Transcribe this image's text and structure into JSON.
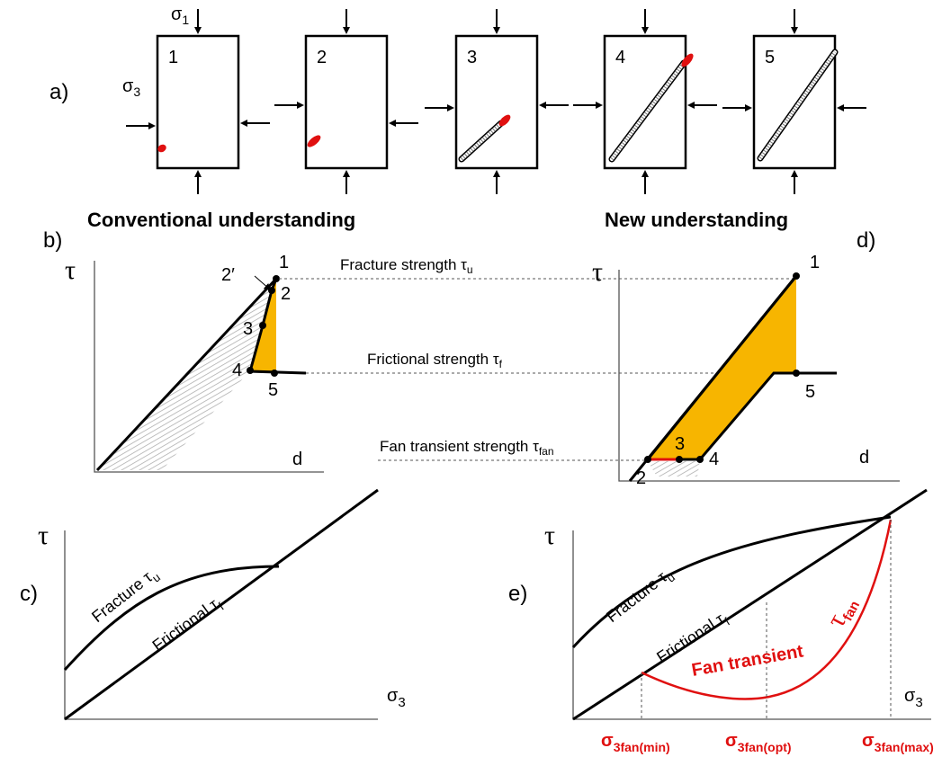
{
  "panel_a": {
    "label": "a)",
    "sigma_1": {
      "symbol": "σ",
      "subscript": "1"
    },
    "sigma_3": {
      "symbol": "σ",
      "subscript": "3"
    },
    "box_numbers": [
      "1",
      "2",
      "3",
      "4",
      "5"
    ]
  },
  "panel_b": {
    "label": "b)",
    "title": "Conventional understanding",
    "y_axis": "τ",
    "x_axis": "d",
    "points": [
      "1",
      "2′",
      "2",
      "3",
      "4",
      "5"
    ]
  },
  "panel_d": {
    "label": "d)",
    "title": "New understanding",
    "y_axis": "τ",
    "x_axis": "d",
    "points": [
      "1",
      "2",
      "3",
      "4",
      "5"
    ]
  },
  "strength_levels": {
    "fracture": {
      "text": "Fracture strength τ",
      "subscript": "u"
    },
    "frictional": {
      "text": "Frictional strength τ",
      "subscript": "f"
    },
    "fan": {
      "text": "Fan transient strength τ",
      "subscript": "fan"
    }
  },
  "panel_c": {
    "label": "c)",
    "y_axis": "τ",
    "x_axis": {
      "symbol": "σ",
      "subscript": "3"
    },
    "fracture": {
      "text": "Fracture τ",
      "subscript": "u"
    },
    "frictional": {
      "text": "Frictional τ",
      "subscript": "f"
    }
  },
  "panel_e": {
    "label": "e)",
    "y_axis": "τ",
    "x_axis": {
      "symbol": "σ",
      "subscript": "3"
    },
    "fracture": {
      "text": "Fracture τ",
      "subscript": "u"
    },
    "frictional": {
      "text": "Frictional τ",
      "subscript": "f"
    },
    "fan_transient": "Fan  transient",
    "fan_symbol": {
      "symbol": "τ",
      "subscript": "fan"
    },
    "sigma_fan": [
      {
        "symbol": "σ",
        "subscript": "3fan(min)"
      },
      {
        "symbol": "σ",
        "subscript": "3fan(opt)"
      },
      {
        "symbol": "σ",
        "subscript": "3fan(max)"
      }
    ]
  }
}
